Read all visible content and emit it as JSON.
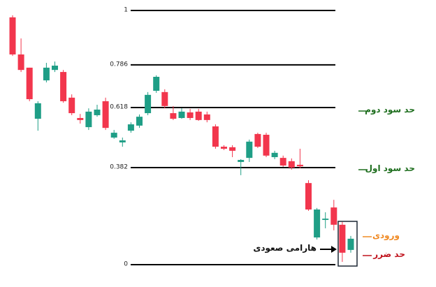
{
  "chart_data": {
    "type": "candlestick",
    "categories": [
      null,
      null,
      null,
      null,
      null,
      null,
      null,
      null,
      null,
      null,
      null,
      null,
      null,
      null,
      null,
      null,
      null,
      null,
      null,
      null,
      null,
      null,
      null,
      null,
      null,
      null,
      null,
      null,
      null,
      null,
      null,
      null,
      null,
      null,
      null,
      null,
      null,
      null,
      null,
      null,
      null
    ],
    "open": [
      0.973,
      0.827,
      0.775,
      0.574,
      0.725,
      0.766,
      0.758,
      0.657,
      0.577,
      0.541,
      0.588,
      0.643,
      0.5,
      0.481,
      0.527,
      0.547,
      0.596,
      0.684,
      0.679,
      0.596,
      0.577,
      0.599,
      0.602,
      0.591,
      0.544,
      0.464,
      0.462,
      0.404,
      0.42,
      0.514,
      0.511,
      0.423,
      0.42,
      0.407,
      0.393,
      0.321,
      0.107,
      0.176,
      0.225,
      0.157,
      0.058
    ],
    "high": [
      0.981,
      0.89,
      0.775,
      0.643,
      0.794,
      0.799,
      0.766,
      0.67,
      0.593,
      0.615,
      0.629,
      0.657,
      0.53,
      0.5,
      0.56,
      0.591,
      0.679,
      0.745,
      0.69,
      0.624,
      0.615,
      0.613,
      0.613,
      0.602,
      0.552,
      0.47,
      0.47,
      0.415,
      0.492,
      0.519,
      0.519,
      0.448,
      0.429,
      0.418,
      0.456,
      0.332,
      0.223,
      0.206,
      0.255,
      0.168,
      0.113
    ],
    "low": [
      0.821,
      0.758,
      0.643,
      0.527,
      0.717,
      0.758,
      0.637,
      0.588,
      0.555,
      0.53,
      0.582,
      0.53,
      0.495,
      0.464,
      0.519,
      0.538,
      0.588,
      0.676,
      0.615,
      0.569,
      0.574,
      0.569,
      0.566,
      0.56,
      0.456,
      0.451,
      0.423,
      0.352,
      0.404,
      0.459,
      0.423,
      0.415,
      0.385,
      0.374,
      0.379,
      0.212,
      0.099,
      0.143,
      0.135,
      0.011,
      0.047
    ],
    "close": [
      0.827,
      0.766,
      0.651,
      0.635,
      0.775,
      0.783,
      0.643,
      0.596,
      0.569,
      0.602,
      0.61,
      0.538,
      0.519,
      0.489,
      0.552,
      0.582,
      0.668,
      0.739,
      0.624,
      0.574,
      0.602,
      0.577,
      0.569,
      0.569,
      0.464,
      0.456,
      0.448,
      0.412,
      0.484,
      0.464,
      0.429,
      0.44,
      0.39,
      0.382,
      0.387,
      0.217,
      0.217,
      0.181,
      0.157,
      0.047,
      0.102
    ],
    "up_color": "#1f9e86",
    "down_color": "#f2364d",
    "ylim": [
      0,
      1
    ],
    "yticks": [
      0,
      0.382,
      0.618,
      0.786,
      1
    ],
    "grid": true,
    "annotations": [
      "حد سود دوم",
      "حد سود اول",
      "ورودی",
      "حد ضرر",
      "هارامی صعودی"
    ]
  }
}
